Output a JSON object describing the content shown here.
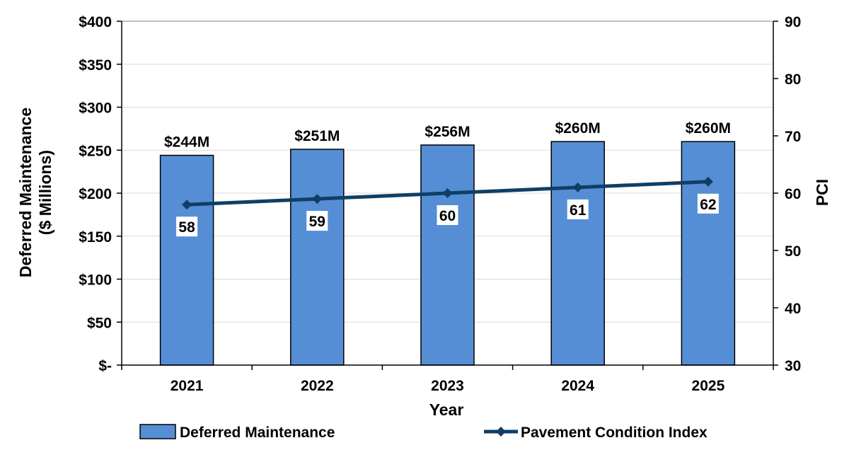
{
  "chart_data": {
    "type": "bar+line",
    "categories": [
      "2021",
      "2022",
      "2023",
      "2024",
      "2025"
    ],
    "xlabel": "Year",
    "bar_series": {
      "name": "Deferred Maintenance",
      "values": [
        244,
        251,
        256,
        260,
        260
      ],
      "labels": [
        "$244M",
        "$251M",
        "$256M",
        "$260M",
        "$260M"
      ],
      "color": "#558ED5",
      "axis": "left"
    },
    "line_series": {
      "name": "Pavement Condition Index",
      "values": [
        58,
        59,
        60,
        61,
        62
      ],
      "labels": [
        "58",
        "59",
        "60",
        "61",
        "62"
      ],
      "color": "#0F3F66",
      "axis": "right"
    },
    "left_axis": {
      "label_line1": "Deferred Maintenance",
      "label_line2": "($ Millions)",
      "range": [
        0,
        400
      ],
      "ticks": [
        0,
        50,
        100,
        150,
        200,
        250,
        300,
        350,
        400
      ],
      "tick_labels": [
        "$-",
        "$50",
        "$100",
        "$150",
        "$200",
        "$250",
        "$300",
        "$350",
        "$400"
      ]
    },
    "right_axis": {
      "label": "PCI",
      "range": [
        30,
        90
      ],
      "ticks": [
        30,
        40,
        50,
        60,
        70,
        80,
        90
      ],
      "tick_labels": [
        "30",
        "40",
        "50",
        "60",
        "70",
        "80",
        "90"
      ]
    },
    "grid": true,
    "legend": {
      "position": "bottom",
      "items": [
        "Deferred Maintenance",
        "Pavement Condition Index"
      ]
    }
  }
}
